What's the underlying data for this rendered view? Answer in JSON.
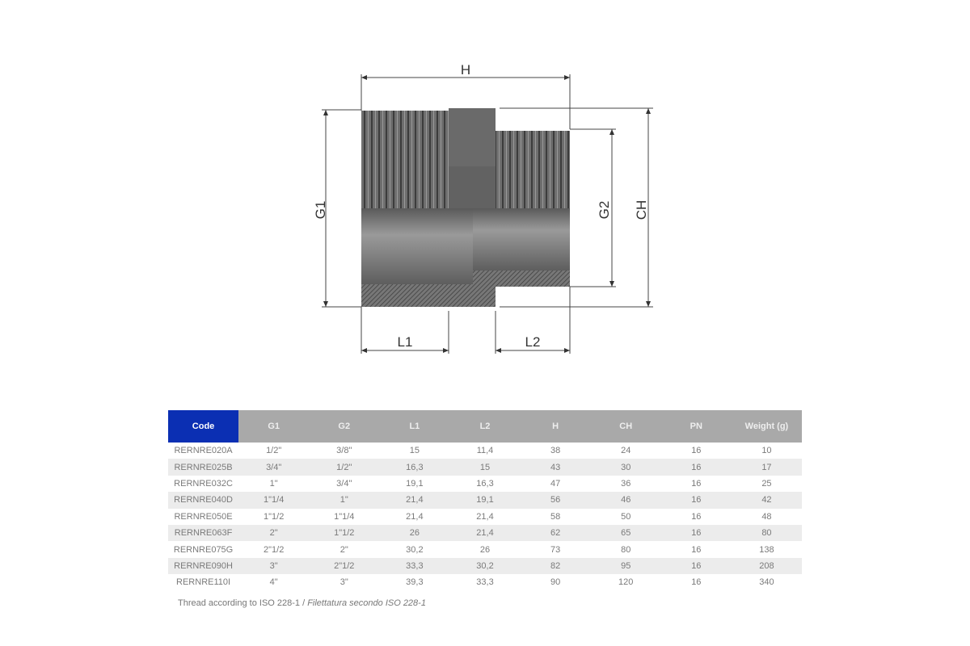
{
  "drawing": {
    "labels": {
      "H": "H",
      "G1": "G1",
      "G2": "G2",
      "CH": "CH",
      "L1": "L1",
      "L2": "L2"
    },
    "colors": {
      "body": "#6f6f6f",
      "dark": "#555555",
      "hatch": "#4a4a4a"
    }
  },
  "table": {
    "headers": [
      "Code",
      "G1",
      "G2",
      "L1",
      "L2",
      "H",
      "CH",
      "PN",
      "Weight (g)"
    ],
    "header_colors": {
      "code": "#0b2fb3",
      "others": "#a9a9a9"
    },
    "rows": [
      [
        "RERNRE020A",
        "1/2\"",
        "3/8\"",
        "15",
        "11,4",
        "38",
        "24",
        "16",
        "10"
      ],
      [
        "RERNRE025B",
        "3/4\"",
        "1/2\"",
        "16,3",
        "15",
        "43",
        "30",
        "16",
        "17"
      ],
      [
        "RERNRE032C",
        "1\"",
        "3/4\"",
        "19,1",
        "16,3",
        "47",
        "36",
        "16",
        "25"
      ],
      [
        "RERNRE040D",
        "1\"1/4",
        "1\"",
        "21,4",
        "19,1",
        "56",
        "46",
        "16",
        "42"
      ],
      [
        "RERNRE050E",
        "1\"1/2",
        "1\"1/4",
        "21,4",
        "21,4",
        "58",
        "50",
        "16",
        "48"
      ],
      [
        "RERNRE063F",
        "2\"",
        "1\"1/2",
        "26",
        "21,4",
        "62",
        "65",
        "16",
        "80"
      ],
      [
        "RERNRE075G",
        "2\"1/2",
        "2\"",
        "30,2",
        "26",
        "73",
        "80",
        "16",
        "138"
      ],
      [
        "RERNRE090H",
        "3\"",
        "2\"1/2",
        "33,3",
        "30,2",
        "82",
        "95",
        "16",
        "208"
      ],
      [
        "RERNRE110I",
        "4\"",
        "3\"",
        "39,3",
        "33,3",
        "90",
        "120",
        "16",
        "340"
      ]
    ]
  },
  "footnote": {
    "text": "Thread according to ISO 228-1 / ",
    "italic": "Filettatura secondo ISO 228-1"
  }
}
